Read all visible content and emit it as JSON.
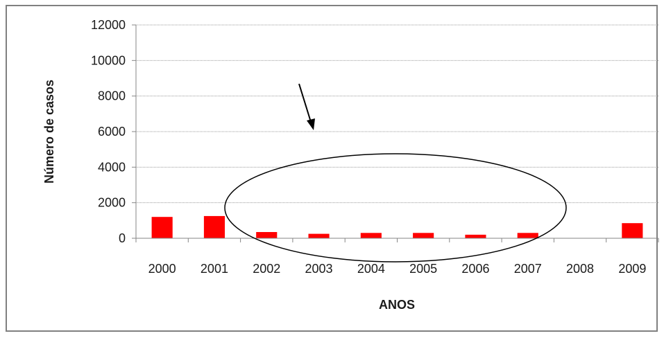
{
  "chart_data": {
    "type": "bar",
    "categories": [
      "2000",
      "2001",
      "2002",
      "2003",
      "2004",
      "2005",
      "2006",
      "2007",
      "2008",
      "2009"
    ],
    "values": [
      1200,
      1250,
      350,
      250,
      300,
      300,
      200,
      300,
      0,
      850
    ],
    "xlabel": "ANOS",
    "ylabel": "Número de casos",
    "ylim": [
      0,
      12000
    ],
    "yticks": [
      "0",
      "2000",
      "4000",
      "6000",
      "8000",
      "10000",
      "12000"
    ],
    "bar_color": "#ff0000",
    "grid": true,
    "legend": "none",
    "annotations": [
      {
        "type": "ellipse",
        "around_categories": [
          "2002",
          "2007"
        ]
      },
      {
        "type": "arrow",
        "pointing_to": "ellipse"
      }
    ]
  }
}
